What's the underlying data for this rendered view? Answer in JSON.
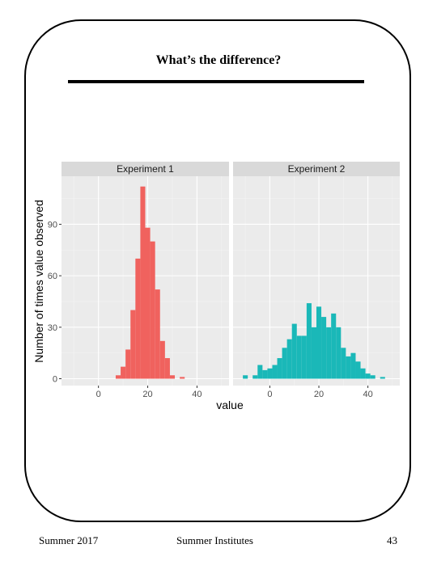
{
  "slide": {
    "title": "What’s the difference?",
    "footer_left": "Summer 2017",
    "footer_center": "Summer Institutes",
    "page_number": "43"
  },
  "chart_data": {
    "type": "histogram",
    "ylabel": "Number of times value observed",
    "xlabel": "value",
    "xlim": [
      -15,
      53
    ],
    "ylim": [
      -4,
      118
    ],
    "x_ticks": [
      0,
      20,
      40
    ],
    "y_ticks": [
      0,
      30,
      60,
      90
    ],
    "bin_width": 2,
    "grid": true,
    "panels": [
      {
        "name": "Experiment 1",
        "color": "#f0625e",
        "bins": [
          {
            "x0": 7,
            "count": 2
          },
          {
            "x0": 9,
            "count": 7
          },
          {
            "x0": 11,
            "count": 17
          },
          {
            "x0": 13,
            "count": 40
          },
          {
            "x0": 15,
            "count": 70
          },
          {
            "x0": 17,
            "count": 112
          },
          {
            "x0": 19,
            "count": 88
          },
          {
            "x0": 21,
            "count": 80
          },
          {
            "x0": 23,
            "count": 52
          },
          {
            "x0": 25,
            "count": 22
          },
          {
            "x0": 27,
            "count": 12
          },
          {
            "x0": 29,
            "count": 2
          },
          {
            "x0": 33,
            "count": 1
          }
        ]
      },
      {
        "name": "Experiment 2",
        "color": "#1ab8b8",
        "bins": [
          {
            "x0": -11,
            "count": 2
          },
          {
            "x0": -7,
            "count": 2
          },
          {
            "x0": -5,
            "count": 8
          },
          {
            "x0": -3,
            "count": 5
          },
          {
            "x0": -1,
            "count": 6
          },
          {
            "x0": 1,
            "count": 8
          },
          {
            "x0": 3,
            "count": 12
          },
          {
            "x0": 5,
            "count": 18
          },
          {
            "x0": 7,
            "count": 23
          },
          {
            "x0": 9,
            "count": 32
          },
          {
            "x0": 11,
            "count": 25
          },
          {
            "x0": 13,
            "count": 25
          },
          {
            "x0": 15,
            "count": 44
          },
          {
            "x0": 17,
            "count": 30
          },
          {
            "x0": 19,
            "count": 42
          },
          {
            "x0": 21,
            "count": 36
          },
          {
            "x0": 23,
            "count": 30
          },
          {
            "x0": 25,
            "count": 38
          },
          {
            "x0": 27,
            "count": 30
          },
          {
            "x0": 29,
            "count": 18
          },
          {
            "x0": 31,
            "count": 13
          },
          {
            "x0": 33,
            "count": 15
          },
          {
            "x0": 35,
            "count": 10
          },
          {
            "x0": 37,
            "count": 6
          },
          {
            "x0": 39,
            "count": 3
          },
          {
            "x0": 41,
            "count": 2
          },
          {
            "x0": 45,
            "count": 1
          }
        ]
      }
    ]
  }
}
